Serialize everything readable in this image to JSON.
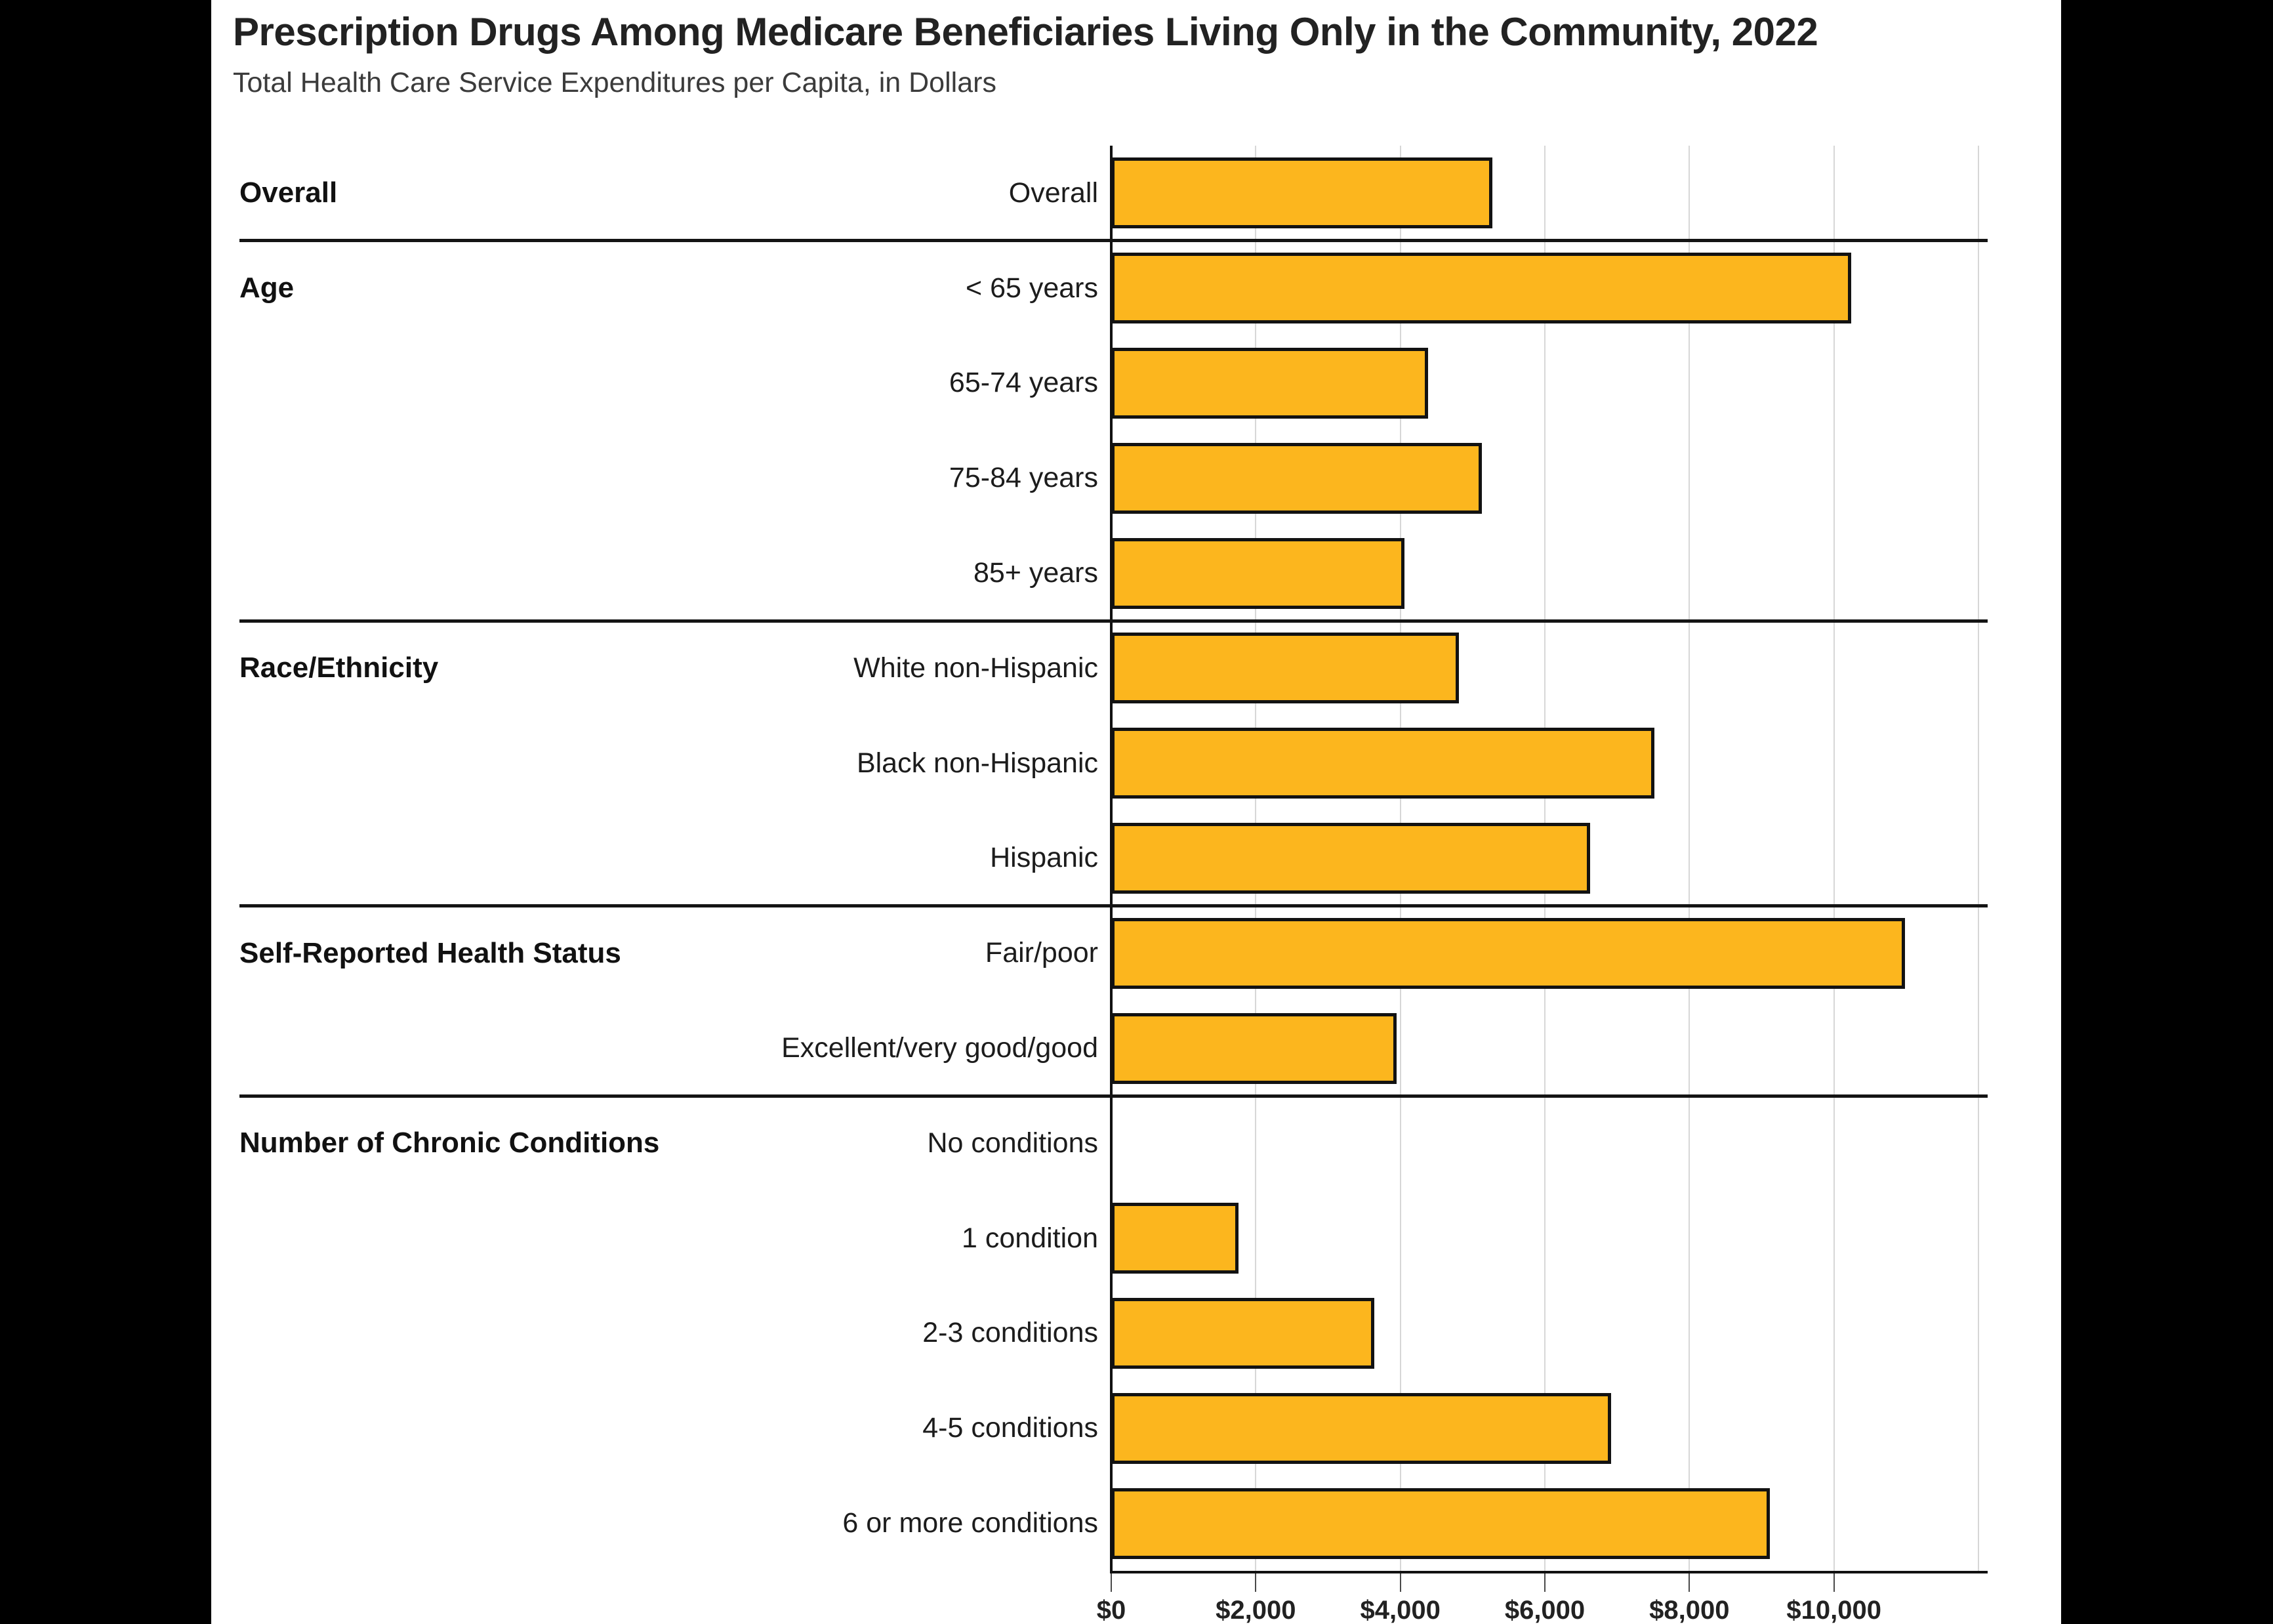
{
  "page": {
    "background_color": "#000000",
    "card_color": "#ffffff"
  },
  "header": {
    "title": "Prescription Drugs Among Medicare Beneficiaries Living Only in the Community, 2022",
    "subtitle": "Total Health Care Service Expenditures per Capita, in Dollars"
  },
  "chart_data": {
    "type": "bar",
    "orientation": "horizontal",
    "title": "Prescription Drugs Among Medicare Beneficiaries Living Only in the Community, 2022",
    "subtitle": "Total Health Care Service Expenditures per Capita, in Dollars",
    "unit": "dollars per capita",
    "grid": true,
    "bar_color": "#FCB61E",
    "bar_border_color": "#121212",
    "axis": {
      "min": 0,
      "max": 12000,
      "gridline_interval": 2000,
      "tick_values": [
        0,
        2000,
        4000,
        6000,
        8000,
        10000
      ],
      "tick_labels": [
        "$0",
        "$2,000",
        "$4,000",
        "$6,000",
        "$8,000",
        "$10,000"
      ]
    },
    "sections": [
      {
        "label": "Overall",
        "rows": [
          {
            "label": "Overall",
            "value": 5270
          }
        ]
      },
      {
        "label": "Age",
        "rows": [
          {
            "label": "< 65 years",
            "value": 10240
          },
          {
            "label": "65-74 years",
            "value": 4380
          },
          {
            "label": "75-84 years",
            "value": 5130
          },
          {
            "label": "85+ years",
            "value": 4060
          }
        ]
      },
      {
        "label": "Race/Ethnicity",
        "rows": [
          {
            "label": "White non-Hispanic",
            "value": 4810
          },
          {
            "label": "Black non-Hispanic",
            "value": 7520
          },
          {
            "label": "Hispanic",
            "value": 6630
          }
        ]
      },
      {
        "label": "Self-Reported Health Status",
        "rows": [
          {
            "label": "Fair/poor",
            "value": 10980
          },
          {
            "label": "Excellent/very good/good",
            "value": 3950
          }
        ]
      },
      {
        "label": "Number of Chronic Conditions",
        "rows": [
          {
            "label": "No conditions",
            "value": 0
          },
          {
            "label": "1 condition",
            "value": 1760
          },
          {
            "label": "2-3 conditions",
            "value": 3640
          },
          {
            "label": "4-5 conditions",
            "value": 6920
          },
          {
            "label": "6 or more conditions",
            "value": 9110
          }
        ]
      }
    ]
  }
}
